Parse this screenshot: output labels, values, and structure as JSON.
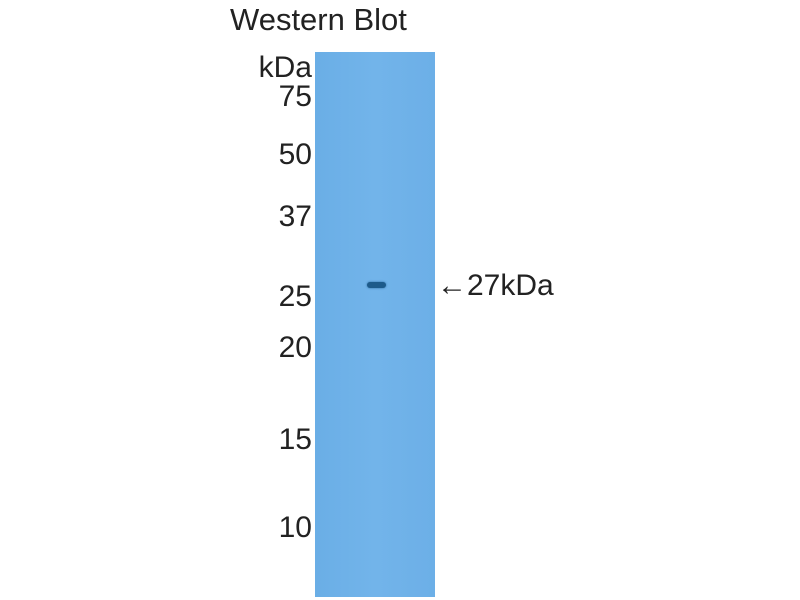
{
  "title": "Western Blot",
  "unit": "kDa",
  "markers": [
    "75",
    "50",
    "37",
    "25",
    "20",
    "15",
    "10"
  ],
  "band_label": "←27kDa",
  "colors": {
    "membrane": "#6fb1e8",
    "band": "#1d5a8a"
  }
}
